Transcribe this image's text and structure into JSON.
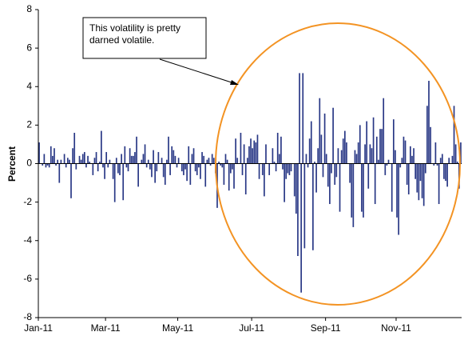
{
  "chart_data": {
    "type": "bar",
    "y_label": "Percent",
    "annotation": [
      "This volatility is pretty",
      "darned volatile."
    ],
    "color": "#283785",
    "ylim": [
      -8,
      8
    ],
    "yticks": [
      -8,
      -6,
      -4,
      -2,
      0,
      2,
      4,
      6,
      8
    ],
    "categories": [
      "Jan-11",
      null,
      null,
      null,
      null,
      null,
      null,
      null,
      null,
      null,
      null,
      null,
      null,
      null,
      null,
      null,
      null,
      null,
      null,
      null,
      null,
      null,
      null,
      null,
      null,
      null,
      null,
      null,
      null,
      null,
      null,
      null,
      null,
      null,
      null,
      null,
      null,
      null,
      null,
      null,
      "Mar-11",
      null,
      null,
      null,
      null,
      null,
      null,
      null,
      null,
      null,
      null,
      null,
      null,
      null,
      null,
      null,
      null,
      null,
      null,
      null,
      null,
      null,
      null,
      null,
      null,
      null,
      null,
      null,
      null,
      null,
      null,
      null,
      null,
      null,
      null,
      null,
      null,
      null,
      null,
      null,
      null,
      null,
      null,
      "May-11",
      null,
      null,
      null,
      null,
      null,
      null,
      null,
      null,
      null,
      null,
      null,
      null,
      null,
      null,
      null,
      null,
      null,
      null,
      null,
      null,
      null,
      null,
      null,
      null,
      null,
      null,
      null,
      null,
      null,
      null,
      null,
      null,
      null,
      null,
      null,
      null,
      null,
      null,
      null,
      null,
      null,
      null,
      null,
      "Jul-11",
      null,
      null,
      null,
      null,
      null,
      null,
      null,
      null,
      null,
      null,
      null,
      null,
      null,
      null,
      null,
      null,
      null,
      null,
      null,
      null,
      null,
      null,
      null,
      null,
      null,
      null,
      null,
      null,
      null,
      null,
      null,
      null,
      null,
      null,
      null,
      null,
      null,
      null,
      null,
      null,
      null,
      null,
      null,
      "Sep-11",
      null,
      null,
      null,
      null,
      null,
      null,
      null,
      null,
      null,
      null,
      null,
      null,
      null,
      null,
      null,
      null,
      null,
      null,
      null,
      null,
      null,
      null,
      null,
      null,
      null,
      null,
      null,
      null,
      null,
      null,
      null,
      null,
      null,
      null,
      null,
      null,
      null,
      null,
      null,
      null,
      null,
      "Nov-11",
      null,
      null,
      null,
      null,
      null,
      null,
      null,
      null,
      null,
      null,
      null,
      null,
      null,
      null,
      null,
      null,
      null,
      null,
      null,
      null,
      null,
      null,
      null,
      null,
      null,
      null,
      null,
      null,
      null,
      null,
      null,
      null,
      null,
      null,
      null,
      null,
      null,
      null
    ],
    "values": [
      1.1,
      0.0,
      -0.1,
      0.5,
      -0.2,
      -0.1,
      -0.2,
      0.9,
      0.4,
      0.8,
      -0.1,
      0.2,
      -1.0,
      0.2,
      0.0,
      0.5,
      -0.2,
      0.3,
      0.2,
      -1.8,
      0.8,
      1.6,
      -0.3,
      0.0,
      0.4,
      0.2,
      0.5,
      0.6,
      -0.2,
      0.4,
      0.1,
      0.0,
      -0.6,
      0.3,
      0.6,
      -0.4,
      0.1,
      1.7,
      -0.2,
      -0.8,
      0.6,
      -0.2,
      0.2,
      0.0,
      -0.8,
      -2.0,
      0.3,
      -0.5,
      -0.6,
      0.5,
      -1.9,
      0.9,
      -0.2,
      -0.4,
      0.8,
      0.4,
      0.4,
      0.6,
      1.4,
      -1.2,
      0.0,
      0.2,
      0.5,
      1.0,
      -0.2,
      0.2,
      -0.3,
      -0.7,
      0.7,
      -1.0,
      -0.4,
      0.6,
      0.0,
      0.3,
      -0.7,
      -1.1,
      0.2,
      1.4,
      -0.6,
      0.9,
      0.7,
      0.4,
      -0.2,
      0.3,
      0.0,
      -0.4,
      -0.6,
      -0.3,
      -0.9,
      0.9,
      -1.1,
      0.5,
      0.8,
      -0.4,
      -0.6,
      -0.2,
      -0.8,
      0.6,
      0.4,
      -1.2,
      0.2,
      0.3,
      -0.1,
      0.5,
      0.3,
      -0.5,
      -2.3,
      0.1,
      -0.1,
      -0.2,
      -1.1,
      0.5,
      0.2,
      -1.4,
      -0.5,
      -0.3,
      -1.3,
      1.3,
      0.3,
      0.0,
      1.6,
      -0.6,
      1.0,
      -1.6,
      0.3,
      0.9,
      1.3,
      0.8,
      1.2,
      1.1,
      1.5,
      -0.8,
      0.0,
      -0.6,
      -1.7,
      1.0,
      0.0,
      -0.6,
      0.0,
      0.8,
      0.1,
      -0.4,
      1.6,
      0.5,
      1.4,
      -0.3,
      -2.0,
      -0.8,
      -0.5,
      -0.6,
      -0.4,
      0.0,
      -1.7,
      -2.6,
      -4.8,
      4.7,
      -6.7,
      4.7,
      -4.4,
      0.5,
      -0.2,
      1.3,
      2.2,
      -4.5,
      0.1,
      -1.5,
      0.8,
      3.4,
      1.5,
      -0.7,
      2.6,
      0.5,
      -1.2,
      -2.1,
      -0.5,
      2.9,
      -1.1,
      -0.7,
      0.8,
      -2.5,
      0.7,
      1.3,
      1.7,
      1.1,
      0.0,
      -1.0,
      -2.8,
      -3.3,
      0.7,
      0.5,
      1.1,
      2.0,
      -2.5,
      -2.8,
      1.0,
      2.2,
      -1.3,
      1.0,
      0.8,
      2.4,
      -2.1,
      1.4,
      0.2,
      1.8,
      1.8,
      3.4,
      -0.6,
      -0.1,
      0.2,
      0.0,
      -2.5,
      2.3,
      0.7,
      -2.8,
      -3.7,
      -0.2,
      0.3,
      1.4,
      1.2,
      -1.1,
      -1.6,
      0.9,
      0.4,
      0.8,
      -0.8,
      -1.5,
      -1.9,
      -0.9,
      -1.8,
      -2.2,
      -0.5,
      3.0,
      4.3,
      1.9,
      0.0,
      -0.1,
      1.1,
      -0.1,
      -2.1,
      0.3,
      0.5,
      -0.8,
      -0.9,
      -1.2,
      0.3,
      0.0,
      0.4,
      3.0,
      1.0,
      0.1,
      -1.3,
      1.1
    ]
  }
}
